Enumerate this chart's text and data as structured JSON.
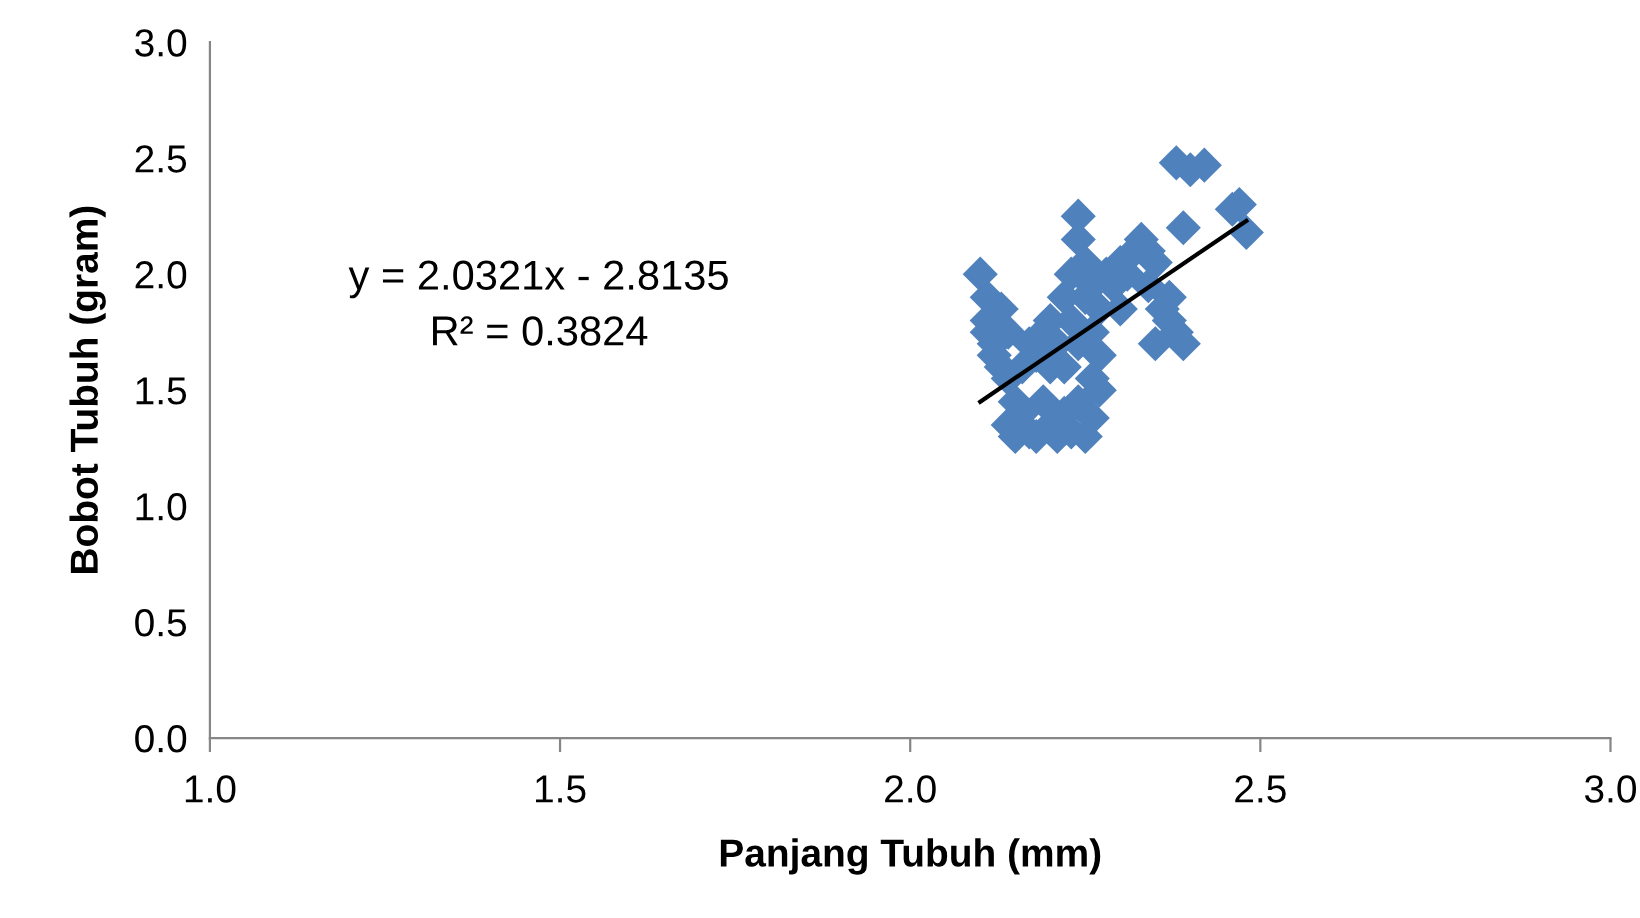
{
  "chart_data": {
    "type": "scatter",
    "xlabel": "Panjang Tubuh (mm)",
    "ylabel": "Bobot Tubuh (gram)",
    "xlim": [
      1.0,
      3.0
    ],
    "xticks": [
      {
        "value": 1.0,
        "label": "1.0"
      },
      {
        "value": 1.5,
        "label": "1.5"
      },
      {
        "value": 2.0,
        "label": "2.0"
      },
      {
        "value": 2.5,
        "label": "2.5"
      },
      {
        "value": 3.0,
        "label": "3.0"
      }
    ],
    "ylim": [
      0.0,
      3.0
    ],
    "yticks": [
      {
        "value": 0.0,
        "label": "0.0"
      },
      {
        "value": 0.5,
        "label": "0.5"
      },
      {
        "value": 1.0,
        "label": "1.0"
      },
      {
        "value": 1.5,
        "label": "1.5"
      },
      {
        "value": 2.0,
        "label": "2.0"
      },
      {
        "value": 2.5,
        "label": "2.5"
      },
      {
        "value": 3.0,
        "label": "3.0"
      }
    ],
    "grid": false,
    "series": [
      {
        "marker": "diamond",
        "color": "#4f81bd",
        "x": [
          2.1,
          2.11,
          2.11,
          2.11,
          2.12,
          2.12,
          2.13,
          2.13,
          2.14,
          2.14,
          2.14,
          2.15,
          2.16,
          2.17,
          2.18,
          2.19,
          2.2,
          2.21,
          2.22,
          2.23,
          2.24,
          2.25,
          2.26,
          2.27,
          2.26,
          2.15,
          2.16,
          2.17,
          2.18,
          2.19,
          2.2,
          2.2,
          2.21,
          2.22,
          2.22,
          2.23,
          2.23,
          2.24,
          2.24,
          2.25,
          2.24,
          2.25,
          2.26,
          2.26,
          2.27,
          2.27,
          2.28,
          2.29,
          2.3,
          2.3,
          2.31,
          2.32,
          2.33,
          2.34,
          2.34,
          2.35,
          2.35,
          2.36,
          2.37,
          2.37,
          2.38,
          2.39,
          2.39,
          2.38,
          2.4,
          2.42,
          2.47,
          2.48,
          2.46
        ],
        "values": [
          2.0,
          1.9,
          1.8,
          1.75,
          1.7,
          1.65,
          1.85,
          1.6,
          1.55,
          1.75,
          1.35,
          1.3,
          1.4,
          1.32,
          1.3,
          1.45,
          1.35,
          1.3,
          1.4,
          1.32,
          1.45,
          1.3,
          1.38,
          1.5,
          1.55,
          1.45,
          1.6,
          1.7,
          1.65,
          1.75,
          1.6,
          1.8,
          1.7,
          1.9,
          1.6,
          1.8,
          2.0,
          2.25,
          2.15,
          2.05,
          1.7,
          1.9,
          1.75,
          1.95,
          1.85,
          1.65,
          2.0,
          1.95,
          2.05,
          1.85,
          2.0,
          2.1,
          2.15,
          2.1,
          1.95,
          2.05,
          1.7,
          1.85,
          1.9,
          1.8,
          1.75,
          1.7,
          2.2,
          2.48,
          2.45,
          2.47,
          2.3,
          2.18,
          2.28
        ]
      },
      {
        "type": "line",
        "color": "#000000",
        "x": [
          2.1,
          2.48
        ],
        "values": [
          1.45,
          2.23
        ]
      }
    ],
    "annotations": [
      "y = 2.0321x - 2.8135",
      "R² = 0.3824"
    ]
  }
}
